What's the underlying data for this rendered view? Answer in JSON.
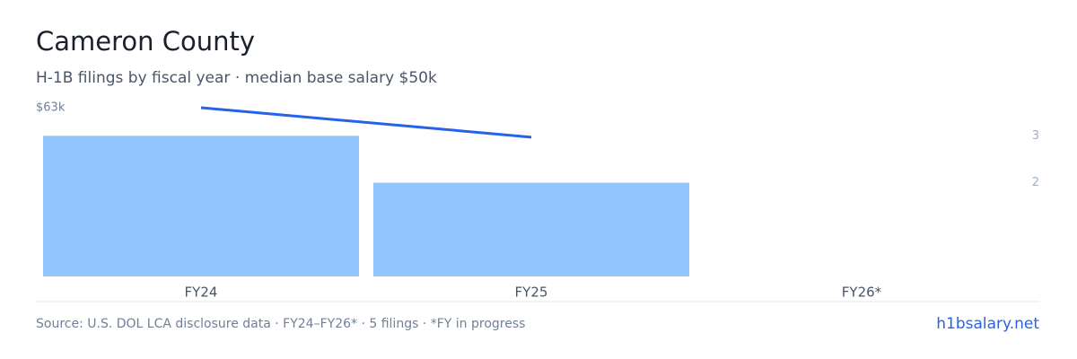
{
  "chart_data": {
    "type": "bar_line",
    "title": "Cameron County",
    "subtitle": "H-1B filings by fiscal year · median base salary $50k",
    "categories": [
      "FY24",
      "FY25",
      "FY26*"
    ],
    "series": [
      {
        "name": "filings",
        "type": "bar",
        "axis": "y2",
        "color": "#93c5fd",
        "values": [
          3,
          2,
          0
        ]
      },
      {
        "name": "median salary",
        "type": "line",
        "axis": "y",
        "color": "#2563eb",
        "values": [
          63000,
          52000,
          null
        ]
      }
    ],
    "ylim": [
      0,
      63000
    ],
    "yticks": [
      {
        "value": 63000,
        "label": "$63k"
      }
    ],
    "y2lim": [
      0,
      3.6
    ],
    "y2ticks": [
      2,
      3
    ],
    "source": "Source: U.S. DOL LCA disclosure data · FY24–FY26* · 5 filings · *FY in progress",
    "site": "h1bsalary.net"
  }
}
